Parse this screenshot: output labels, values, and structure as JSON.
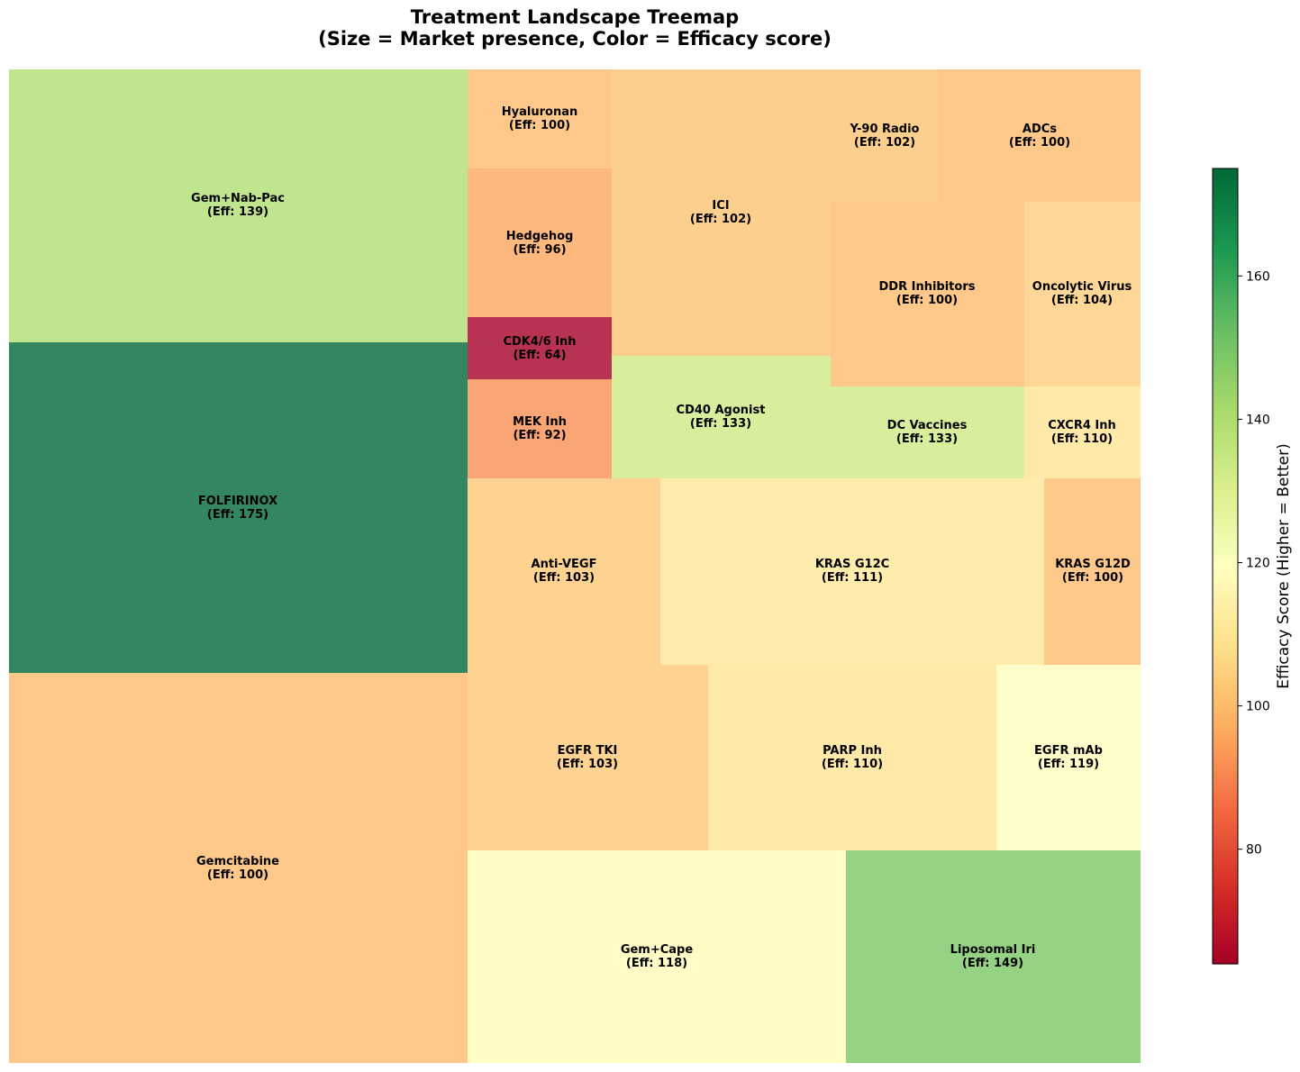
{
  "chart_data": {
    "type": "treemap",
    "title_lines": [
      "Treatment Landscape Treemap",
      "(Size = Market presence, Color = Efficacy score)"
    ],
    "label_format": "(Eff: {eff})",
    "colorbar": {
      "label": "Efficacy Score (Higher = Better)",
      "range": [
        64,
        175
      ],
      "ticks": [
        80,
        100,
        120,
        140,
        160
      ],
      "colormap": "RdYlGn"
    },
    "tiles": [
      {
        "name": "Gem+Nab-Pac",
        "eff": 139
      },
      {
        "name": "FOLFIRINOX",
        "eff": 175
      },
      {
        "name": "Gemcitabine",
        "eff": 100
      },
      {
        "name": "Hyaluronan",
        "eff": 100
      },
      {
        "name": "Hedgehog",
        "eff": 96
      },
      {
        "name": "CDK4/6 Inh",
        "eff": 64
      },
      {
        "name": "MEK Inh",
        "eff": 92
      },
      {
        "name": "ICI",
        "eff": 102
      },
      {
        "name": "Y-90 Radio",
        "eff": 102
      },
      {
        "name": "ADCs",
        "eff": 100
      },
      {
        "name": "DDR Inhibitors",
        "eff": 100
      },
      {
        "name": "Oncolytic Virus",
        "eff": 104
      },
      {
        "name": "CD40 Agonist",
        "eff": 133
      },
      {
        "name": "DC Vaccines",
        "eff": 133
      },
      {
        "name": "CXCR4 Inh",
        "eff": 110
      },
      {
        "name": "Anti-VEGF",
        "eff": 103
      },
      {
        "name": "KRAS G12C",
        "eff": 111
      },
      {
        "name": "KRAS G12D",
        "eff": 100
      },
      {
        "name": "EGFR TKI",
        "eff": 103
      },
      {
        "name": "PARP Inh",
        "eff": 110
      },
      {
        "name": "EGFR mAb",
        "eff": 119
      },
      {
        "name": "Gem+Cape",
        "eff": 118
      },
      {
        "name": "Liposomal Iri",
        "eff": 149
      }
    ]
  }
}
